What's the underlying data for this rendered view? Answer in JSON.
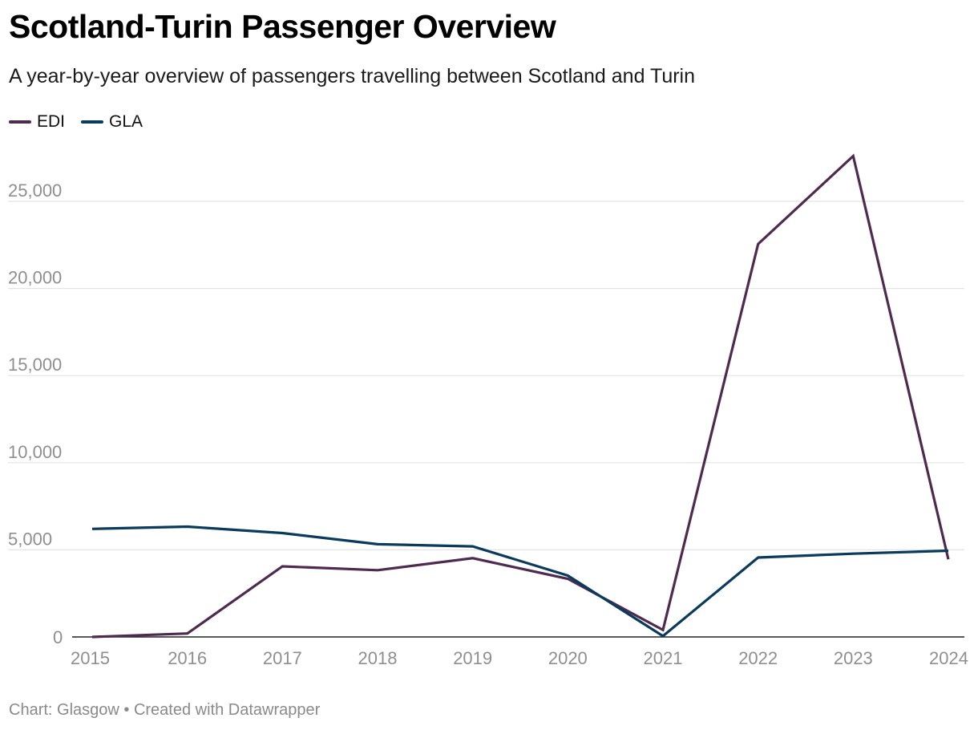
{
  "header": {
    "title": "Scotland-Turin Passenger Overview",
    "subtitle": "A year-by-year overview of passengers travelling between Scotland and Turin"
  },
  "legend": [
    {
      "label": "EDI",
      "color": "#4f2a4f"
    },
    {
      "label": "GLA",
      "color": "#0a3a5c"
    }
  ],
  "footer": "Chart: Glasgow • Created with Datawrapper",
  "chart_data": {
    "type": "line",
    "title": "Scotland-Turin Passenger Overview",
    "subtitle": "A year-by-year overview of passengers travelling between Scotland and Turin",
    "x": [
      "2015",
      "2016",
      "2017",
      "2018",
      "2019",
      "2020",
      "2021",
      "2022",
      "2023",
      "2024"
    ],
    "series": [
      {
        "name": "EDI",
        "color": "#4f2a4f",
        "values": [
          0,
          200,
          4050,
          3830,
          4520,
          3340,
          400,
          22550,
          27600,
          4450
        ]
      },
      {
        "name": "GLA",
        "color": "#0a3a5c",
        "values": [
          6200,
          6330,
          5960,
          5320,
          5200,
          3520,
          50,
          4560,
          4780,
          4950
        ]
      }
    ],
    "yticks": [
      0,
      5000,
      10000,
      15000,
      20000,
      25000
    ],
    "ytick_labels": [
      "0",
      "5,000",
      "10,000",
      "15,000",
      "20,000",
      "25,000"
    ],
    "ylim": [
      0,
      27600
    ],
    "grid": true,
    "legend_position": "top-left",
    "xlabel": "",
    "ylabel": ""
  }
}
